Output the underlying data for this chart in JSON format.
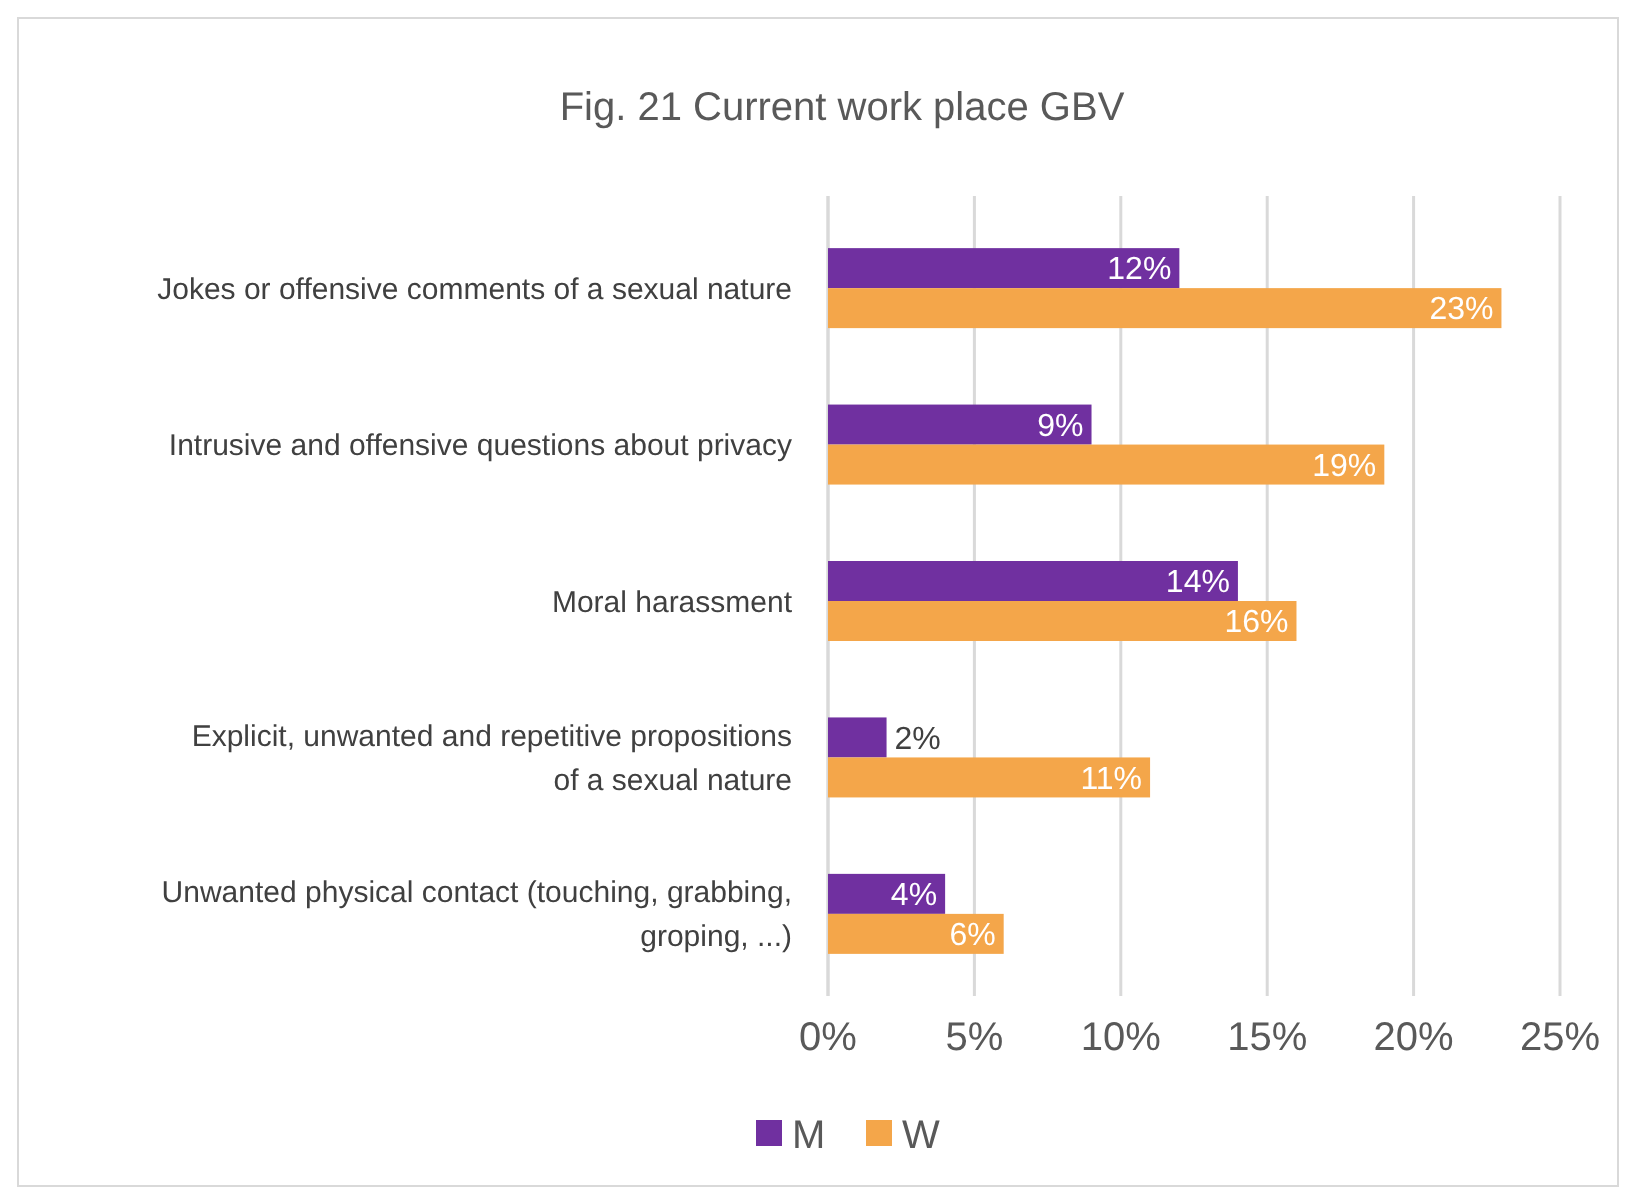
{
  "chart_data": {
    "type": "bar",
    "orientation": "horizontal",
    "title": "Fig. 21 Current work place GBV",
    "categories": [
      "Jokes or offensive comments of a sexual nature",
      "Intrusive and offensive questions about privacy",
      "Moral harassment",
      "Explicit, unwanted and repetitive propositions of a sexual nature",
      "Unwanted physical contact (touching, grabbing, groping, ...)"
    ],
    "series": [
      {
        "name": "M",
        "color": "#7030a0",
        "values": [
          12,
          9,
          14,
          2,
          4
        ],
        "value_labels": [
          "12%",
          "9%",
          "14%",
          "2%",
          "4%"
        ]
      },
      {
        "name": "W",
        "color": "#f4a64a",
        "values": [
          23,
          19,
          16,
          11,
          6
        ],
        "value_labels": [
          "23%",
          "19%",
          "16%",
          "11%",
          "6%"
        ]
      }
    ],
    "xlim": [
      0,
      25
    ],
    "xticks": [
      {
        "value": 0,
        "label": "0%"
      },
      {
        "value": 5,
        "label": "5%"
      },
      {
        "value": 10,
        "label": "10%"
      },
      {
        "value": 15,
        "label": "15%"
      },
      {
        "value": 20,
        "label": "20%"
      },
      {
        "value": 25,
        "label": "25%"
      }
    ],
    "grid": "x",
    "legend": "bottom"
  }
}
